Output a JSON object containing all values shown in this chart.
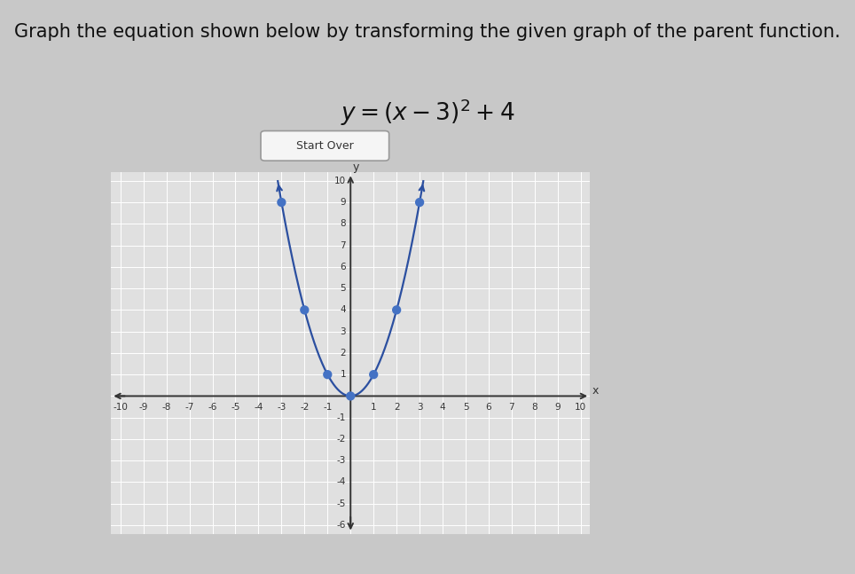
{
  "title": "Graph the equation shown below by transforming the given graph of the parent function.",
  "equation_latex": "$y = (x - 3)^2 + 4$",
  "xlim": [
    -10,
    10
  ],
  "ylim": [
    -6,
    10
  ],
  "xticks": [
    -10,
    -9,
    -8,
    -7,
    -6,
    -5,
    -4,
    -3,
    -2,
    -1,
    0,
    1,
    2,
    3,
    4,
    5,
    6,
    7,
    8,
    9,
    10
  ],
  "yticks": [
    -6,
    -5,
    -4,
    -3,
    -2,
    -1,
    0,
    1,
    2,
    3,
    4,
    5,
    6,
    7,
    8,
    9,
    10
  ],
  "dot_points": [
    [
      0,
      0
    ],
    [
      -1,
      1
    ],
    [
      1,
      1
    ],
    [
      -2,
      4
    ],
    [
      2,
      4
    ],
    [
      -3,
      9
    ],
    [
      3,
      9
    ]
  ],
  "dot_color": "#4472c4",
  "curve_color": "#2b4fa0",
  "curve_linewidth": 1.6,
  "dot_size": 55,
  "page_bg_color": "#c8c8c8",
  "content_bg_color": "#e8e8e8",
  "plot_bg_color": "#e0e0e0",
  "grid_color": "#ffffff",
  "axis_color": "#333333",
  "tick_fontsize": 7.5,
  "title_fontsize": 15,
  "eq_fontsize": 19,
  "button_text": "Start Over",
  "button_bg": "#f5f5f5",
  "button_edge": "#999999"
}
